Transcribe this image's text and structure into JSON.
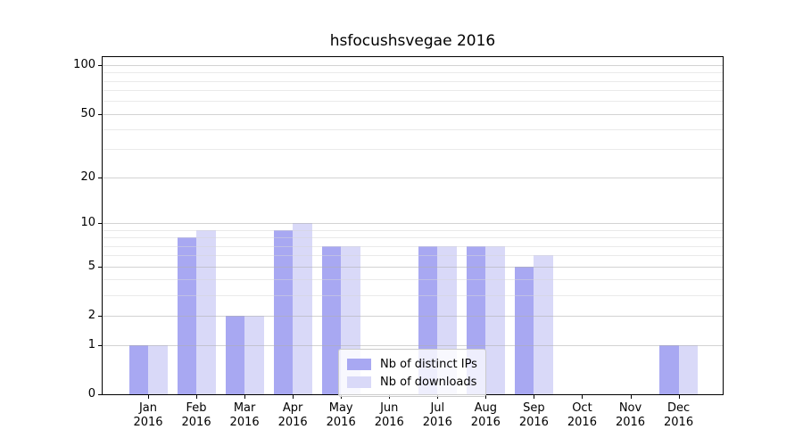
{
  "chart_data": {
    "type": "bar",
    "title": "hsfocushsvegae 2016",
    "categories": [
      "Jan",
      "Feb",
      "Mar",
      "Apr",
      "May",
      "Jun",
      "Jul",
      "Aug",
      "Sep",
      "Oct",
      "Nov",
      "Dec"
    ],
    "year_label": "2016",
    "series": [
      {
        "name": "Nb of distinct IPs",
        "color": "#a8a8f2",
        "values": [
          1,
          8,
          2,
          9,
          7,
          0,
          7,
          7,
          5,
          0,
          0,
          1
        ]
      },
      {
        "name": "Nb of downloads",
        "color": "#d9d9f8",
        "values": [
          1,
          9,
          2,
          10,
          7,
          0,
          7,
          7,
          6,
          0,
          0,
          1
        ]
      }
    ],
    "xlabel": "",
    "ylabel": "",
    "yscale": "log1p",
    "ylim": [
      0,
      112
    ],
    "yticks": [
      0,
      1,
      2,
      5,
      10,
      20,
      50,
      100
    ],
    "minor_gridlines": [
      3,
      4,
      6,
      7,
      8,
      9,
      30,
      40,
      60,
      70,
      80,
      90
    ],
    "grid": "on",
    "legend_position": "lower center"
  },
  "colors": {
    "background": "#ffffff",
    "axis": "#000000",
    "text": "#000000",
    "grid_major": "#d6d6d6",
    "grid_minor": "#ebebeb",
    "bar_distinct_ips": "#a8a8f2",
    "bar_downloads": "#d9d9f8",
    "legend_border": "#cbcbcb"
  }
}
